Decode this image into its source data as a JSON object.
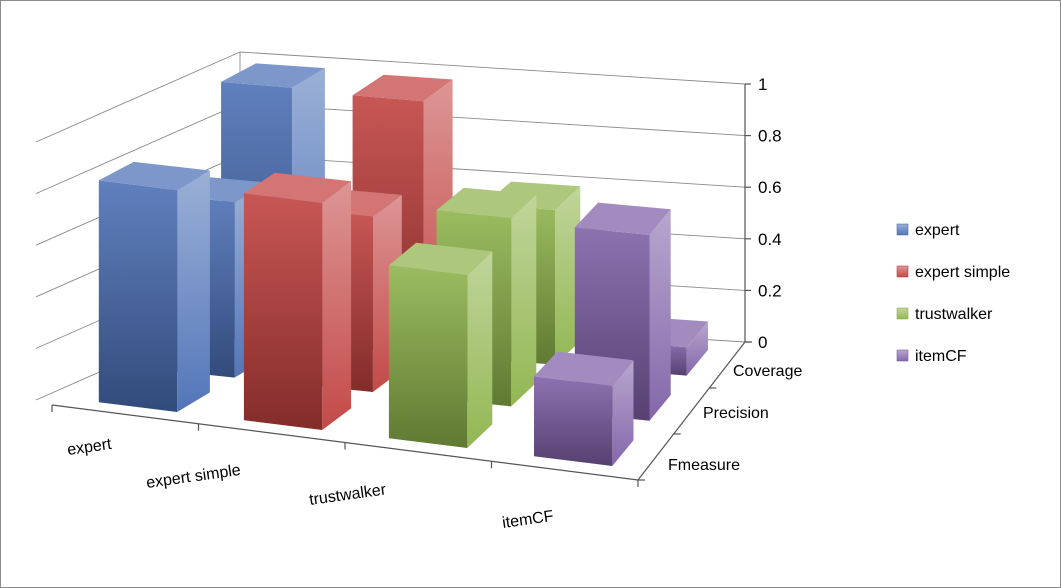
{
  "chart_data": {
    "type": "bar",
    "title": "",
    "categories": [
      "expert",
      "expert simple",
      "trustwalker",
      "itemCF"
    ],
    "depth_categories": [
      "Coverage",
      "Precision",
      "Fmeasure"
    ],
    "series": [
      {
        "name": "expert",
        "values": {
          "Coverage": 0.99,
          "Precision": 0.68,
          "Fmeasure": 0.86
        }
      },
      {
        "name": "expert simple",
        "values": {
          "Coverage": 0.98,
          "Precision": 0.68,
          "Fmeasure": 0.88
        }
      },
      {
        "name": "trustwalker",
        "values": {
          "Coverage": 0.6,
          "Precision": 0.73,
          "Fmeasure": 0.67
        }
      },
      {
        "name": "itemCF",
        "values": {
          "Coverage": 0.11,
          "Precision": 0.72,
          "Fmeasure": 0.31
        }
      }
    ],
    "zlim": [
      0,
      1
    ],
    "z_ticks": [
      "0",
      "0.2",
      "0.4",
      "0.6",
      "0.8",
      "1"
    ],
    "grid": true,
    "legend_position": "right",
    "colors": {
      "expert": "#4a6fb5",
      "expert simple": "#c0403e",
      "trustwalker": "#8db34a",
      "itemCF": "#7e5fa6"
    }
  }
}
